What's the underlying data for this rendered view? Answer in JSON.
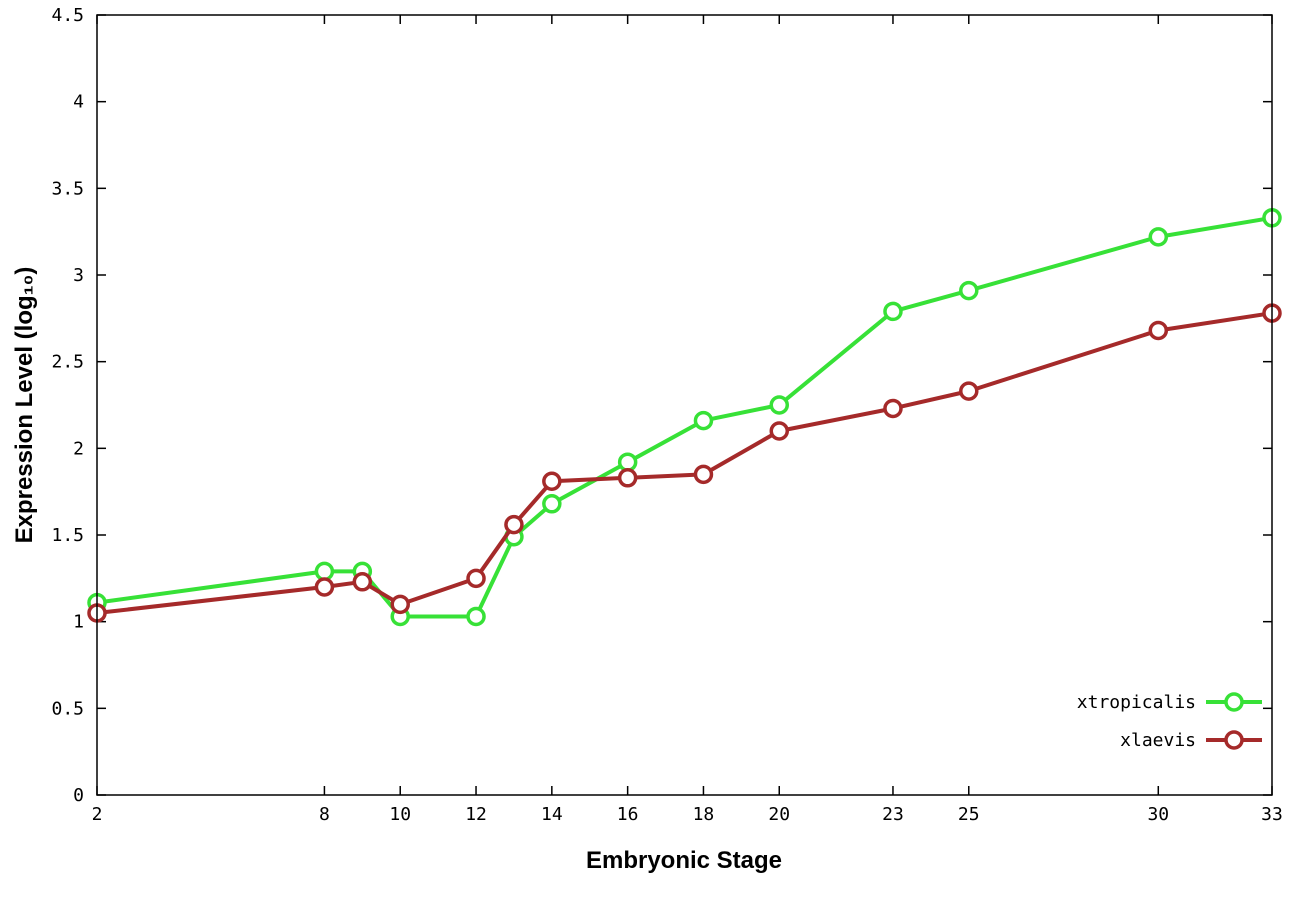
{
  "chart_data": {
    "type": "line",
    "x": [
      2,
      8,
      9,
      10,
      12,
      13,
      14,
      16,
      18,
      20,
      23,
      25,
      30,
      33
    ],
    "series": [
      {
        "name": "xtropicalis",
        "color": "#37e137",
        "values": [
          1.11,
          1.29,
          1.29,
          1.03,
          1.03,
          1.49,
          1.68,
          1.92,
          2.16,
          2.25,
          2.79,
          2.91,
          3.22,
          3.33
        ]
      },
      {
        "name": "xlaevis",
        "color": "#a52a2a",
        "values": [
          1.05,
          1.2,
          1.23,
          1.1,
          1.25,
          1.56,
          1.81,
          1.83,
          1.85,
          2.1,
          2.23,
          2.33,
          2.68,
          2.78
        ]
      }
    ],
    "title": "",
    "xlabel": "Embryonic Stage",
    "ylabel": "Expression Level (log₁₀)",
    "xlim": [
      2,
      33
    ],
    "ylim": [
      0,
      4.5
    ],
    "xticks": [
      2,
      8,
      10,
      12,
      14,
      16,
      18,
      20,
      23,
      25,
      30,
      33
    ],
    "yticks": [
      0,
      0.5,
      1,
      1.5,
      2,
      2.5,
      3,
      3.5,
      4,
      4.5
    ],
    "grid": false,
    "marker": "open-circle",
    "legend_position": "inside-bottom-right",
    "background": "#ffffff",
    "axis_color": "#000000"
  }
}
